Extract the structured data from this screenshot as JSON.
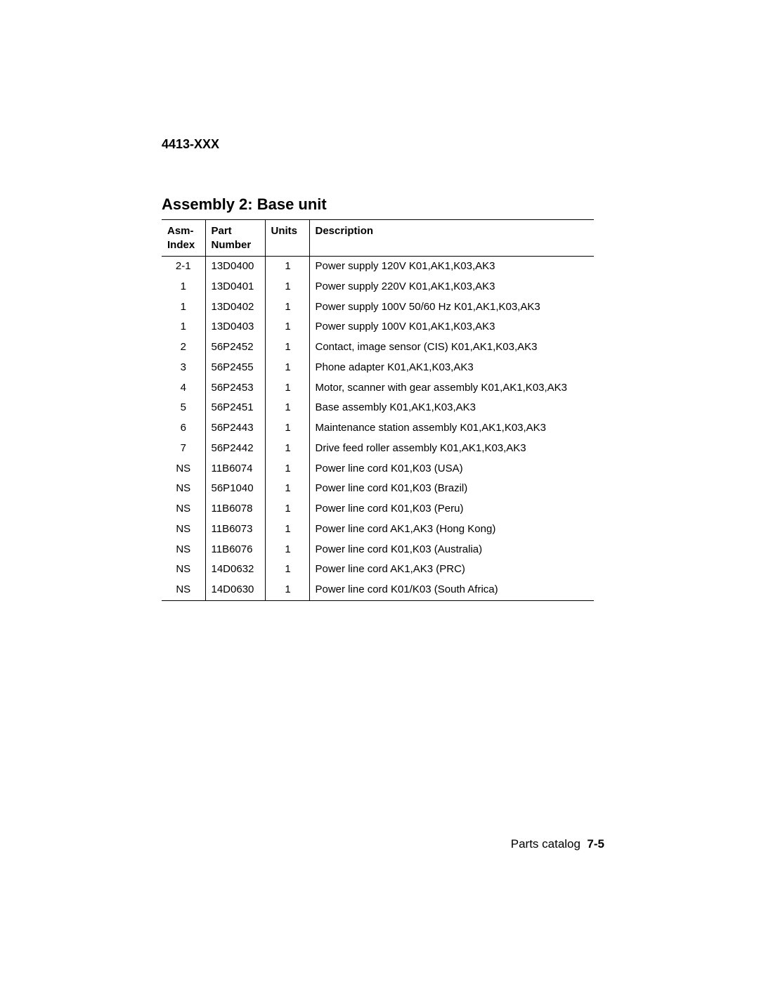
{
  "header": {
    "model": "4413-XXX"
  },
  "section": {
    "title": "Assembly 2: Base unit"
  },
  "table": {
    "columns": {
      "asm_index_l1": "Asm-",
      "asm_index_l2": "Index",
      "part_number_l1": "Part",
      "part_number_l2": "Number",
      "units": "Units",
      "description": "Description"
    },
    "rows": [
      {
        "asm": "2-1",
        "part": "13D0400",
        "units": "1",
        "desc": "Power supply 120V K01,AK1,K03,AK3"
      },
      {
        "asm": "1",
        "part": "13D0401",
        "units": "1",
        "desc": "Power supply 220V K01,AK1,K03,AK3"
      },
      {
        "asm": "1",
        "part": "13D0402",
        "units": "1",
        "desc": "Power supply 100V 50/60 Hz K01,AK1,K03,AK3"
      },
      {
        "asm": "1",
        "part": "13D0403",
        "units": "1",
        "desc": "Power supply 100V K01,AK1,K03,AK3"
      },
      {
        "asm": "2",
        "part": "56P2452",
        "units": "1",
        "desc": "Contact, image sensor (CIS) K01,AK1,K03,AK3"
      },
      {
        "asm": "3",
        "part": "56P2455",
        "units": "1",
        "desc": "Phone adapter K01,AK1,K03,AK3"
      },
      {
        "asm": "4",
        "part": "56P2453",
        "units": "1",
        "desc": "Motor, scanner with gear assembly K01,AK1,K03,AK3"
      },
      {
        "asm": "5",
        "part": "56P2451",
        "units": "1",
        "desc": "Base assembly K01,AK1,K03,AK3"
      },
      {
        "asm": "6",
        "part": "56P2443",
        "units": "1",
        "desc": "Maintenance station assembly K01,AK1,K03,AK3"
      },
      {
        "asm": "7",
        "part": "56P2442",
        "units": "1",
        "desc": "Drive feed roller assembly K01,AK1,K03,AK3"
      },
      {
        "asm": "NS",
        "part": "11B6074",
        "units": "1",
        "desc": "Power line cord K01,K03 (USA)"
      },
      {
        "asm": "NS",
        "part": "56P1040",
        "units": "1",
        "desc": "Power line cord K01,K03 (Brazil)"
      },
      {
        "asm": "NS",
        "part": "11B6078",
        "units": "1",
        "desc": "Power line cord K01,K03 (Peru)"
      },
      {
        "asm": "NS",
        "part": "11B6073",
        "units": "1",
        "desc": "Power line cord AK1,AK3 (Hong Kong)"
      },
      {
        "asm": "NS",
        "part": "11B6076",
        "units": "1",
        "desc": "Power line cord K01,K03 (Australia)"
      },
      {
        "asm": "NS",
        "part": "14D0632",
        "units": "1",
        "desc": "Power line cord AK1,AK3 (PRC)"
      },
      {
        "asm": "NS",
        "part": "14D0630",
        "units": "1",
        "desc": "Power line cord K01/K03 (South Africa)"
      }
    ]
  },
  "footer": {
    "label": "Parts catalog",
    "page": "7-5"
  }
}
